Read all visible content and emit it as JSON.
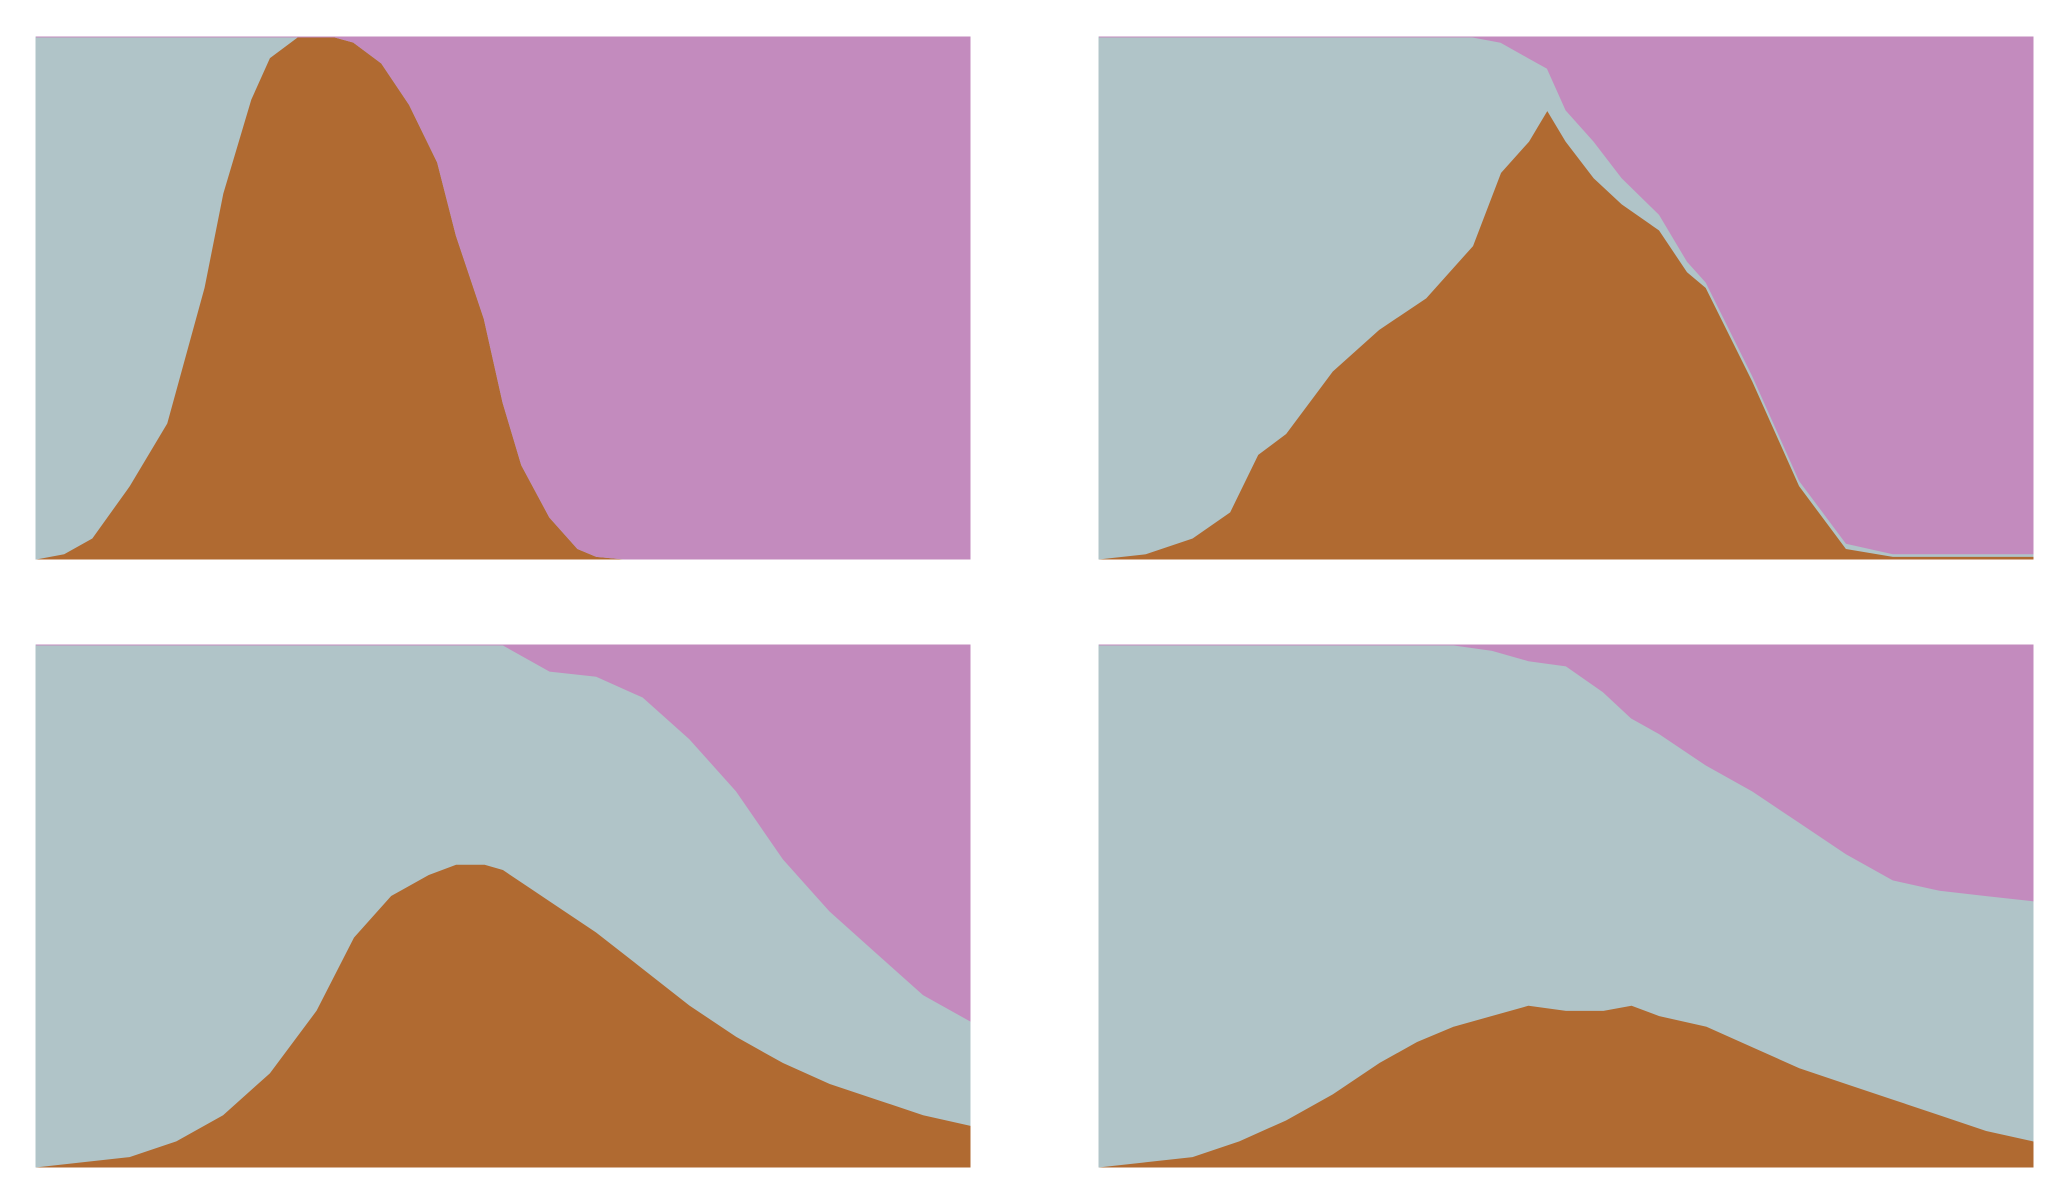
{
  "colors": {
    "background": "#ffffff",
    "series_bottom": "#b06a31",
    "series_middle": "#b0c4c8",
    "series_top": "#c38bbe"
  },
  "chart_data": [
    {
      "type": "area",
      "stacked": true,
      "normalized": true,
      "ylim": [
        0,
        1
      ],
      "xlim": [
        0,
        1
      ],
      "grid": false,
      "legend": "none",
      "x": [
        0,
        0.03,
        0.06,
        0.1,
        0.14,
        0.18,
        0.2,
        0.23,
        0.25,
        0.28,
        0.3,
        0.32,
        0.34,
        0.37,
        0.4,
        0.43,
        0.45,
        0.48,
        0.5,
        0.52,
        0.55,
        0.58,
        0.6,
        0.63,
        0.65,
        0.7,
        0.75,
        0.8,
        0.85,
        0.9,
        0.95,
        1
      ],
      "series": [
        {
          "values": [
            0,
            0.01,
            0.04,
            0.14,
            0.26,
            0.52,
            0.7,
            0.88,
            0.96,
            1,
            1,
            1,
            0.99,
            0.95,
            0.87,
            0.76,
            0.62,
            0.46,
            0.3,
            0.18,
            0.08,
            0.02,
            0.005,
            0,
            0,
            0,
            0,
            0,
            0,
            0,
            0,
            0
          ]
        },
        {
          "values": [
            1,
            0.99,
            0.96,
            0.86,
            0.74,
            0.48,
            0.3,
            0.12,
            0.04,
            0,
            0,
            0,
            0,
            0,
            0,
            0,
            0,
            0,
            0,
            0,
            0,
            0,
            0,
            0,
            0,
            0,
            0,
            0,
            0,
            0,
            0,
            0
          ]
        },
        {
          "values": [
            0,
            0,
            0,
            0,
            0,
            0,
            0,
            0,
            0,
            0,
            0,
            0,
            0.01,
            0.05,
            0.13,
            0.24,
            0.38,
            0.54,
            0.7,
            0.82,
            0.92,
            0.98,
            0.995,
            1,
            1,
            1,
            1,
            1,
            1,
            1,
            1,
            1
          ]
        }
      ]
    },
    {
      "type": "area",
      "stacked": true,
      "normalized": true,
      "ylim": [
        0,
        1
      ],
      "xlim": [
        0,
        1
      ],
      "grid": false,
      "legend": "none",
      "x": [
        0,
        0.05,
        0.1,
        0.14,
        0.17,
        0.2,
        0.25,
        0.3,
        0.35,
        0.4,
        0.43,
        0.46,
        0.48,
        0.5,
        0.53,
        0.56,
        0.6,
        0.63,
        0.65,
        0.7,
        0.75,
        0.8,
        0.85,
        0.9,
        0.95,
        1
      ],
      "series": [
        {
          "values": [
            0,
            0.01,
            0.04,
            0.09,
            0.2,
            0.24,
            0.36,
            0.44,
            0.5,
            0.6,
            0.74,
            0.8,
            0.86,
            0.8,
            0.73,
            0.68,
            0.63,
            0.55,
            0.52,
            0.34,
            0.14,
            0.02,
            0.005,
            0.005,
            0.005,
            0.005
          ]
        },
        {
          "values": [
            1,
            0.99,
            0.96,
            0.91,
            0.8,
            0.76,
            0.64,
            0.56,
            0.5,
            0.4,
            0.25,
            0.16,
            0.08,
            0.06,
            0.07,
            0.05,
            0.03,
            0.02,
            0.01,
            0.01,
            0.01,
            0.01,
            0.005,
            0.005,
            0.005,
            0.005
          ]
        },
        {
          "values": [
            0,
            0,
            0,
            0,
            0,
            0,
            0,
            0,
            0,
            0,
            0.01,
            0.04,
            0.06,
            0.14,
            0.2,
            0.27,
            0.34,
            0.43,
            0.47,
            0.65,
            0.85,
            0.97,
            0.99,
            0.99,
            0.99,
            0.99
          ]
        }
      ]
    },
    {
      "type": "area",
      "stacked": true,
      "normalized": true,
      "ylim": [
        0,
        1
      ],
      "xlim": [
        0,
        1
      ],
      "grid": false,
      "legend": "none",
      "x": [
        0,
        0.05,
        0.1,
        0.15,
        0.2,
        0.25,
        0.3,
        0.34,
        0.38,
        0.42,
        0.45,
        0.48,
        0.5,
        0.55,
        0.6,
        0.65,
        0.7,
        0.75,
        0.8,
        0.85,
        0.9,
        0.95,
        1
      ],
      "series": [
        {
          "values": [
            0,
            0.01,
            0.02,
            0.05,
            0.1,
            0.18,
            0.3,
            0.44,
            0.52,
            0.56,
            0.58,
            0.58,
            0.57,
            0.51,
            0.45,
            0.38,
            0.31,
            0.25,
            0.2,
            0.16,
            0.13,
            0.1,
            0.08
          ]
        },
        {
          "values": [
            1,
            0.99,
            0.98,
            0.95,
            0.9,
            0.82,
            0.7,
            0.56,
            0.48,
            0.44,
            0.42,
            0.42,
            0.43,
            0.44,
            0.49,
            0.52,
            0.51,
            0.47,
            0.39,
            0.33,
            0.28,
            0.23,
            0.2
          ]
        },
        {
          "values": [
            0,
            0,
            0,
            0,
            0,
            0,
            0,
            0,
            0,
            0,
            0,
            0,
            0,
            0.05,
            0.06,
            0.1,
            0.18,
            0.28,
            0.41,
            0.51,
            0.59,
            0.67,
            0.72
          ]
        }
      ]
    },
    {
      "type": "area",
      "stacked": true,
      "normalized": true,
      "ylim": [
        0,
        1
      ],
      "xlim": [
        0,
        1
      ],
      "grid": false,
      "legend": "none",
      "x": [
        0,
        0.05,
        0.1,
        0.15,
        0.2,
        0.25,
        0.3,
        0.34,
        0.38,
        0.42,
        0.46,
        0.5,
        0.54,
        0.57,
        0.6,
        0.65,
        0.7,
        0.75,
        0.8,
        0.85,
        0.9,
        0.95,
        1
      ],
      "series": [
        {
          "values": [
            0,
            0.01,
            0.02,
            0.05,
            0.09,
            0.14,
            0.2,
            0.24,
            0.27,
            0.29,
            0.31,
            0.3,
            0.3,
            0.31,
            0.29,
            0.27,
            0.23,
            0.19,
            0.16,
            0.13,
            0.1,
            0.07,
            0.05
          ]
        },
        {
          "values": [
            1,
            0.99,
            0.98,
            0.95,
            0.91,
            0.86,
            0.8,
            0.76,
            0.73,
            0.7,
            0.66,
            0.66,
            0.61,
            0.55,
            0.54,
            0.5,
            0.49,
            0.47,
            0.44,
            0.42,
            0.43,
            0.45,
            0.46
          ]
        },
        {
          "values": [
            0,
            0,
            0,
            0,
            0,
            0,
            0,
            0,
            0,
            0.01,
            0.03,
            0.04,
            0.09,
            0.14,
            0.17,
            0.23,
            0.28,
            0.34,
            0.4,
            0.45,
            0.47,
            0.48,
            0.49
          ]
        }
      ]
    }
  ]
}
